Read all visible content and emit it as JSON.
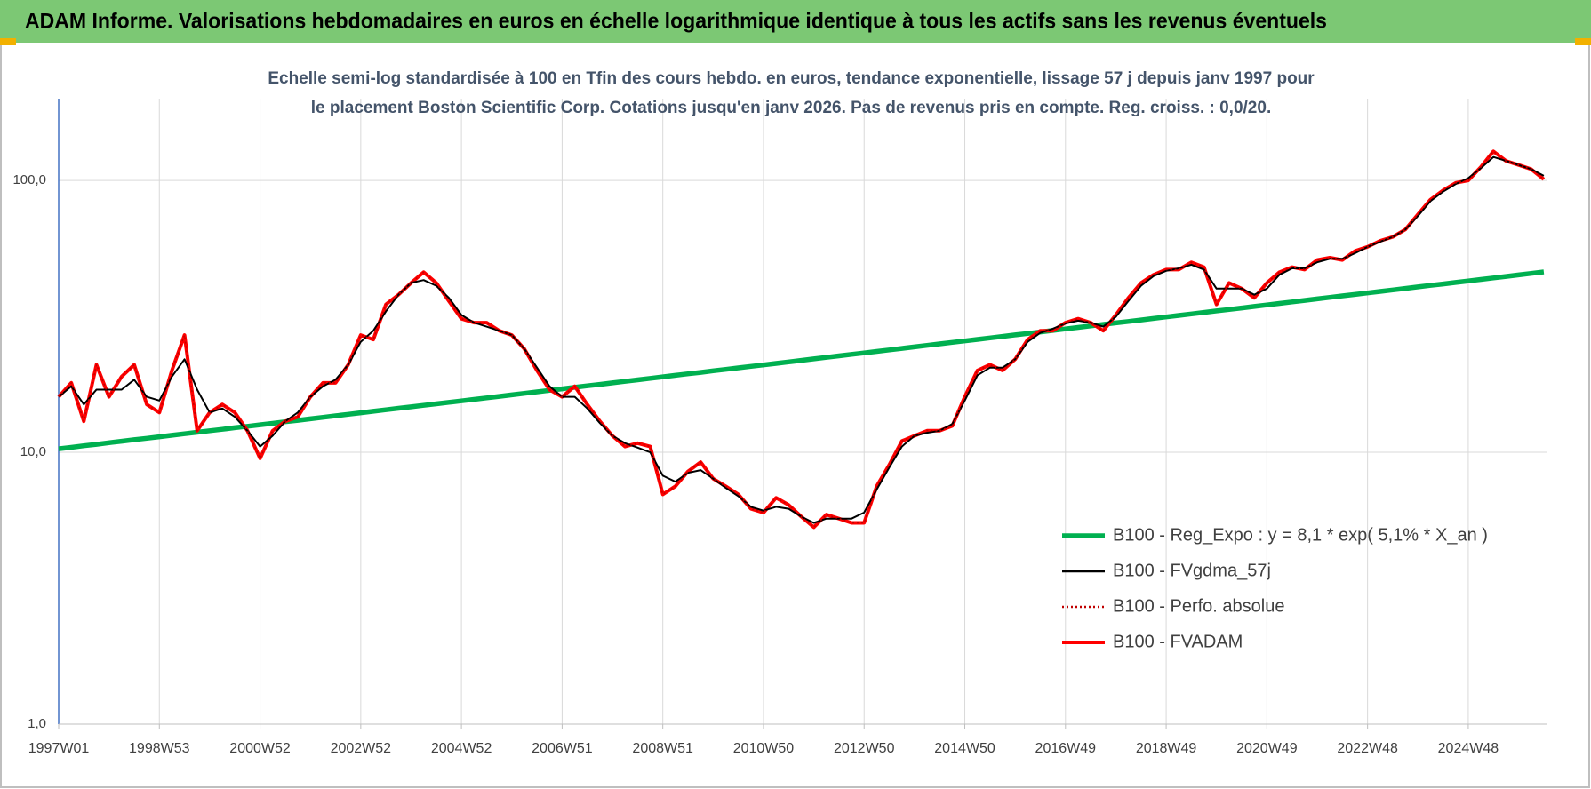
{
  "header": "ADAM Informe. Valorisations hebdomadaires en euros en échelle logarithmique identique à tous les actifs sans les revenus éventuels",
  "chart_data": {
    "type": "line",
    "title": "Echelle semi-log standardisée à 100 en Tfin des cours hebdo. en euros, tendance exponentielle, lissage 57 j depuis janv 1997 pour le placement Boston Scientific Corp. Cotations jusqu'en janv 2026. Pas de revenus pris en compte. Reg. croiss. : 0,0/20.",
    "categories": [
      "1997W01",
      null,
      null,
      null,
      null,
      null,
      null,
      null,
      "1998W53",
      null,
      null,
      null,
      null,
      null,
      null,
      null,
      "2000W52",
      null,
      null,
      null,
      null,
      null,
      null,
      null,
      "2002W52",
      null,
      null,
      null,
      null,
      null,
      null,
      null,
      "2004W52",
      null,
      null,
      null,
      null,
      null,
      null,
      null,
      "2006W51",
      null,
      null,
      null,
      null,
      null,
      null,
      null,
      "2008W51",
      null,
      null,
      null,
      null,
      null,
      null,
      null,
      "2010W50",
      null,
      null,
      null,
      null,
      null,
      null,
      null,
      "2012W50",
      null,
      null,
      null,
      null,
      null,
      null,
      null,
      "2014W50",
      null,
      null,
      null,
      null,
      null,
      null,
      null,
      "2016W49",
      null,
      null,
      null,
      null,
      null,
      null,
      null,
      "2018W49",
      null,
      null,
      null,
      null,
      null,
      null,
      null,
      "2020W49",
      null,
      null,
      null,
      null,
      null,
      null,
      null,
      "2022W48",
      null,
      null,
      null,
      null,
      null,
      null,
      null,
      "2024W48",
      null,
      null,
      null,
      null,
      null,
      null
    ],
    "series": [
      {
        "name": "B100 - Reg_Expo : y = 8,1 * exp( 5,1% *  X_an )",
        "color": "#00b050",
        "line_style": "solid",
        "values": [
          10.3,
          10.43,
          10.57,
          10.7,
          10.84,
          10.98,
          11.12,
          11.26,
          11.4,
          11.55,
          11.7,
          11.85,
          12.0,
          12.15,
          12.31,
          12.46,
          12.62,
          12.78,
          12.95,
          13.11,
          13.28,
          13.45,
          13.62,
          13.8,
          13.97,
          14.15,
          14.33,
          14.52,
          14.7,
          14.89,
          15.08,
          15.27,
          15.46,
          15.66,
          15.86,
          16.06,
          16.27,
          16.48,
          16.69,
          16.9,
          17.12,
          17.34,
          17.56,
          17.78,
          18.01,
          18.24,
          18.47,
          18.71,
          18.95,
          19.19,
          19.44,
          19.68,
          19.94,
          20.19,
          20.45,
          20.71,
          20.97,
          21.24,
          21.51,
          21.79,
          22.07,
          22.35,
          22.63,
          22.92,
          23.21,
          23.51,
          23.81,
          24.11,
          24.42,
          24.73,
          25.05,
          25.37,
          25.69,
          26.02,
          26.35,
          26.69,
          27.03,
          27.37,
          27.72,
          28.08,
          28.44,
          28.8,
          29.17,
          29.54,
          29.92,
          30.3,
          30.69,
          31.08,
          31.48,
          31.88,
          32.29,
          32.7,
          33.12,
          33.54,
          33.97,
          34.4,
          34.85,
          35.29,
          35.74,
          36.2,
          36.66,
          37.13,
          37.61,
          38.09,
          38.57,
          39.06,
          39.56,
          40.07,
          40.58,
          41.1,
          41.62,
          42.15,
          42.7,
          43.24,
          43.8,
          44.36,
          44.92,
          45.5,
          46.08
        ]
      },
      {
        "name": "B100 - FVgdma_57j",
        "color": "#000000",
        "line_style": "solid",
        "values": [
          16,
          17.5,
          15,
          17,
          17,
          17,
          18.5,
          16,
          15.5,
          19,
          22,
          17,
          14,
          14.5,
          13.5,
          12,
          10.5,
          11.5,
          13,
          14,
          16,
          17.5,
          18.5,
          21,
          25.5,
          28,
          33,
          38,
          42,
          43,
          41,
          37,
          32,
          30,
          29,
          28,
          27,
          24,
          20.5,
          17.5,
          16,
          16,
          14.5,
          12.8,
          11.5,
          10.8,
          10.4,
          10,
          8.2,
          7.8,
          8.4,
          8.6,
          8,
          7.4,
          6.9,
          6.3,
          6.1,
          6.3,
          6.2,
          5.8,
          5.5,
          5.7,
          5.7,
          5.7,
          6,
          7.3,
          8.8,
          10.5,
          11.5,
          11.8,
          12,
          12.7,
          15.5,
          19.2,
          20.5,
          20.5,
          22,
          25.5,
          27.5,
          28.5,
          29.8,
          30.5,
          30,
          29,
          31.5,
          36,
          41,
          44.5,
          46.5,
          47.5,
          49,
          47,
          40,
          40,
          40,
          38,
          40,
          45,
          47.5,
          47.5,
          50,
          51.5,
          51.5,
          54,
          57,
          59.5,
          62,
          66,
          74,
          84,
          91,
          97,
          102,
          111,
          122,
          118,
          114,
          110,
          104
        ]
      },
      {
        "name": "B100 - Perfo. absolue",
        "color": "#c00000",
        "line_style": "dotted",
        "values": [
          16,
          18,
          13,
          21,
          16,
          19,
          21,
          15,
          14,
          20,
          27,
          12,
          14,
          15,
          14,
          12,
          9.5,
          12,
          13,
          13.5,
          16,
          18,
          18,
          21,
          27,
          26,
          35,
          38,
          42,
          46,
          42,
          36,
          31,
          30,
          30,
          28,
          27,
          24,
          20,
          17,
          16,
          17.5,
          15,
          13,
          11.5,
          10.5,
          10.8,
          10.5,
          7,
          7.5,
          8.5,
          9.2,
          8,
          7.5,
          7,
          6.2,
          6,
          6.8,
          6.4,
          5.8,
          5.3,
          5.9,
          5.7,
          5.5,
          5.5,
          7.5,
          9,
          11,
          11.5,
          12,
          12,
          12.5,
          16,
          20,
          21,
          20,
          22,
          26,
          28,
          28,
          30,
          31,
          30,
          28,
          32,
          37,
          42,
          45,
          47,
          47,
          50,
          48,
          35,
          42,
          40,
          37,
          42,
          46,
          48,
          47,
          51,
          52,
          51,
          55,
          57,
          60,
          62,
          66,
          75,
          85,
          92,
          98,
          100,
          112,
          128,
          118,
          114,
          110,
          101
        ]
      },
      {
        "name": "B100 - FVADAM",
        "color": "#ff0000",
        "line_style": "solid",
        "values": [
          16,
          18,
          13,
          21,
          16,
          19,
          21,
          15,
          14,
          20,
          27,
          12,
          14,
          15,
          14,
          12,
          9.5,
          12,
          13,
          13.5,
          16,
          18,
          18,
          21,
          27,
          26,
          35,
          38,
          42,
          46,
          42,
          36,
          31,
          30,
          30,
          28,
          27,
          24,
          20,
          17,
          16,
          17.5,
          15,
          13,
          11.5,
          10.5,
          10.8,
          10.5,
          7,
          7.5,
          8.5,
          9.2,
          8,
          7.5,
          7,
          6.2,
          6,
          6.8,
          6.4,
          5.8,
          5.3,
          5.9,
          5.7,
          5.5,
          5.5,
          7.5,
          9,
          11,
          11.5,
          12,
          12,
          12.5,
          16,
          20,
          21,
          20,
          22,
          26,
          28,
          28,
          30,
          31,
          30,
          28,
          32,
          37,
          42,
          45,
          47,
          47,
          50,
          48,
          35,
          42,
          40,
          37,
          42,
          46,
          48,
          47,
          51,
          52,
          51,
          55,
          57,
          60,
          62,
          66,
          75,
          85,
          92,
          98,
          100,
          112,
          128,
          118,
          114,
          110,
          101
        ]
      }
    ],
    "yscale": "log",
    "ylim": [
      1,
      200
    ],
    "yticks": [
      {
        "value": 1,
        "label": "1,0"
      },
      {
        "value": 10,
        "label": "10,0"
      },
      {
        "value": 100,
        "label": "100,0"
      }
    ],
    "grid": true,
    "legend": "right"
  }
}
